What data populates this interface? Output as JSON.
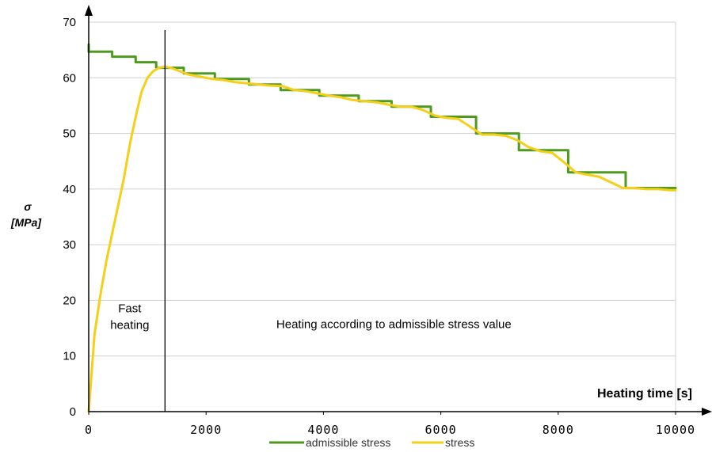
{
  "chart_data": {
    "type": "line",
    "title": "",
    "xlabel": "Heating time [s]",
    "ylabel_symbol": "σ",
    "ylabel_unit": "[MPa]",
    "xlim": [
      0,
      10000
    ],
    "ylim": [
      0,
      70
    ],
    "x_ticks": [
      "0",
      "2000",
      "4000",
      "6000",
      "8000",
      "10000"
    ],
    "y_ticks": [
      "0",
      "10",
      "20",
      "30",
      "40",
      "50",
      "60",
      "70"
    ],
    "grid": "horizontal",
    "legend_position": "bottom",
    "series": [
      {
        "name": "admissible stress",
        "color": "#4e9a1e",
        "x": [
          0,
          0,
          400,
          400,
          800,
          800,
          1150,
          1150,
          1620,
          1620,
          2150,
          2150,
          2730,
          2730,
          3270,
          3270,
          3930,
          3930,
          4600,
          4600,
          5160,
          5160,
          5830,
          5830,
          6600,
          6600,
          7330,
          7330,
          8170,
          8170,
          9150,
          9150,
          10000
        ],
        "y": [
          66,
          64.7,
          64.7,
          63.8,
          63.8,
          62.8,
          62.8,
          61.8,
          61.8,
          60.8,
          60.8,
          59.8,
          59.8,
          58.8,
          58.8,
          57.8,
          57.8,
          56.8,
          56.8,
          55.8,
          55.8,
          54.8,
          54.8,
          53.0,
          53.0,
          50.0,
          50.0,
          47.0,
          47.0,
          43.0,
          43.0,
          40.2,
          40.2
        ]
      },
      {
        "name": "stress",
        "color": "#f5cf18",
        "x": [
          0,
          100,
          200,
          300,
          400,
          500,
          600,
          700,
          800,
          900,
          1000,
          1100,
          1200,
          1300,
          1400,
          1550,
          1700,
          1900,
          2100,
          2300,
          2500,
          2700,
          2900,
          3100,
          3300,
          3500,
          3700,
          3900,
          4100,
          4300,
          4500,
          4700,
          4900,
          5100,
          5300,
          5500,
          5700,
          5900,
          6100,
          6300,
          6500,
          6700,
          6900,
          7100,
          7300,
          7500,
          7700,
          7900,
          8100,
          8300,
          8500,
          8700,
          8900,
          9100,
          9300,
          9500,
          9700,
          9900,
          10000
        ],
        "y": [
          0,
          14,
          21,
          27,
          32,
          37,
          42,
          48,
          53,
          57.5,
          60,
          61.2,
          61.8,
          62,
          61.8,
          61.2,
          60.6,
          60.2,
          59.8,
          59.6,
          59.2,
          59.0,
          58.8,
          58.6,
          58.5,
          57.8,
          57.6,
          57.2,
          56.8,
          56.5,
          56.0,
          55.8,
          55.6,
          55.2,
          54.8,
          54.8,
          54.2,
          53.2,
          52.8,
          52.6,
          51.2,
          49.8,
          49.8,
          49.6,
          48.8,
          47.5,
          46.8,
          46.5,
          44.8,
          43.0,
          42.6,
          42.2,
          41.2,
          40.2,
          40.2,
          40.0,
          40.0,
          39.8,
          39.8
        ]
      }
    ],
    "annotations": [
      {
        "lines": [
          "Fast",
          "heating"
        ],
        "x": 700,
        "y": 15
      },
      {
        "lines": [
          "Heating according to admissible stress value"
        ],
        "x": 5200,
        "y": 15
      }
    ],
    "vertical_lines": [
      1300
    ]
  }
}
